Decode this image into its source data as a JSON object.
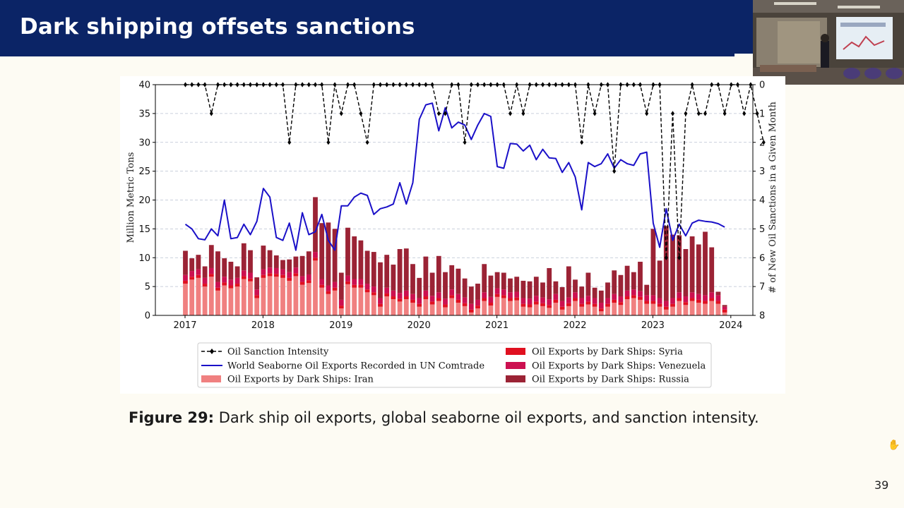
{
  "slide": {
    "title": "Dark shipping offsets sanctions",
    "caption_label": "Figure 29:",
    "caption_text": "Dark ship oil exports, global seaborne oil exports, and sanction intensity.",
    "page_number": "39"
  },
  "chart_data": {
    "type": "bar",
    "xlabel": "",
    "ylabel": "Million Metric Tons",
    "y2label": "# of New Oil Sanctions in a Given Month",
    "ylim": [
      0,
      40
    ],
    "y2lim": [
      0,
      8
    ],
    "y2_inverted": true,
    "y_ticks": [
      0,
      5,
      10,
      15,
      20,
      25,
      30,
      35,
      40
    ],
    "y2_ticks": [
      0,
      1,
      2,
      3,
      4,
      5,
      6,
      7,
      8
    ],
    "x_ticks": [
      "2017",
      "2018",
      "2019",
      "2020",
      "2021",
      "2022",
      "2023",
      "2024"
    ],
    "grid": "horizontal dashed",
    "legend_position": "bottom-center",
    "months_start": "2017-01",
    "bar_series": [
      {
        "name": "Oil Exports by Dark Ships: Iran",
        "color": "#f08080",
        "values": [
          5.5,
          6.2,
          6.5,
          5.0,
          6.7,
          4.3,
          5.2,
          4.7,
          5.0,
          6.3,
          5.9,
          3.0,
          6.5,
          6.8,
          6.7,
          6.5,
          6.0,
          6.8,
          5.3,
          5.6,
          9.5,
          4.8,
          3.7,
          4.3,
          1.2,
          5.4,
          4.8,
          4.8,
          4.0,
          3.5,
          1.5,
          3.3,
          2.8,
          2.4,
          2.8,
          2.2,
          1.5,
          2.8,
          1.9,
          2.5,
          1.4,
          3.0,
          2.2,
          1.6,
          0.5,
          1.2,
          2.5,
          1.7,
          3.2,
          3.0,
          2.5,
          2.6,
          1.5,
          1.4,
          1.9,
          1.6,
          1.3,
          2.2,
          1.0,
          1.6,
          2.5,
          1.5,
          1.9,
          1.5,
          0.7,
          1.5,
          2.2,
          1.8,
          2.8,
          3.0,
          2.7,
          2.0,
          2.0,
          1.5,
          1.0,
          1.5,
          2.5,
          1.8,
          2.5,
          2.2,
          2.0,
          2.5,
          2.0,
          0.5
        ]
      },
      {
        "name": "Oil Exports by Dark Ships: Syria",
        "color": "#e01020",
        "values": [
          0.5,
          0.5,
          0.5,
          0.5,
          0.5,
          0.5,
          0.5,
          0.5,
          0.5,
          0.5,
          0.5,
          0.5,
          0.5,
          0.5,
          0.5,
          0.5,
          0.5,
          0.5,
          0.5,
          0.5,
          0.5,
          0.5,
          0.5,
          0.5,
          0.5,
          0.5,
          0.5,
          0.5,
          0.5,
          0.5,
          0.5,
          0.5,
          0.5,
          0.5,
          0.5,
          0.5,
          0.5,
          0.5,
          0.5,
          0.5,
          0.5,
          0.5,
          0.5,
          0.5,
          0.5,
          0.5,
          0.5,
          0.5,
          0.5,
          0.5,
          0.5,
          0.5,
          0.5,
          0.5,
          0.5,
          0.5,
          0.5,
          0.5,
          0.5,
          0.5,
          0.5,
          0.5,
          0.5,
          0.5,
          0.5,
          0.5,
          0.5,
          0.5,
          0.5,
          0.5,
          0.5,
          0.5,
          0.5,
          0.5,
          0.5,
          0.5,
          0.5,
          0.5,
          0.5,
          0.5,
          0.5,
          0.5,
          0.5,
          0.5
        ]
      },
      {
        "name": "Oil Exports by Dark Ships: Venezuela",
        "color": "#cc1050",
        "values": [
          1.0,
          1.0,
          1.0,
          1.0,
          1.0,
          1.0,
          1.0,
          1.0,
          1.0,
          1.0,
          1.0,
          1.0,
          1.0,
          1.0,
          1.0,
          1.0,
          1.0,
          1.0,
          1.0,
          1.0,
          1.0,
          1.0,
          1.0,
          1.0,
          1.0,
          1.0,
          1.0,
          1.0,
          1.0,
          1.0,
          1.0,
          1.0,
          1.0,
          1.0,
          1.0,
          1.0,
          1.0,
          1.0,
          1.0,
          1.0,
          1.0,
          1.0,
          1.0,
          1.0,
          1.0,
          1.0,
          1.0,
          1.0,
          1.0,
          1.0,
          1.0,
          1.0,
          1.0,
          1.0,
          1.0,
          1.0,
          1.0,
          1.0,
          1.0,
          1.0,
          1.0,
          1.0,
          1.0,
          1.0,
          1.0,
          1.0,
          1.0,
          1.0,
          1.0,
          1.0,
          1.0,
          1.0,
          1.0,
          1.0,
          1.0,
          1.0,
          1.0,
          1.0,
          1.0,
          1.0,
          1.0,
          1.0,
          1.0,
          0.5
        ]
      },
      {
        "name": "Oil Exports by Dark Ships: Russia",
        "color": "#9b2335",
        "values": [
          4.2,
          2.2,
          2.5,
          2.0,
          4.0,
          5.3,
          3.2,
          3.1,
          2.0,
          4.7,
          3.9,
          2.1,
          4.1,
          3.0,
          2.2,
          1.6,
          2.2,
          1.9,
          3.5,
          4.0,
          9.5,
          9.7,
          10.9,
          9.2,
          4.7,
          8.3,
          7.4,
          6.7,
          5.7,
          6.0,
          6.2,
          5.7,
          4.5,
          7.6,
          7.3,
          5.2,
          3.5,
          5.9,
          4.0,
          6.3,
          4.6,
          4.2,
          4.4,
          3.3,
          3.0,
          2.8,
          4.9,
          3.7,
          2.8,
          2.9,
          2.4,
          2.6,
          3.0,
          3.0,
          3.3,
          2.6,
          5.4,
          2.2,
          2.4,
          5.4,
          2.2,
          2.0,
          4.0,
          1.8,
          2.1,
          2.7,
          4.1,
          3.7,
          4.3,
          3.0,
          5.1,
          1.8,
          11.5,
          6.5,
          13.0,
          11.0,
          9.9,
          8.2,
          9.7,
          8.6,
          11.0,
          7.8,
          0.6,
          0.3
        ]
      }
    ],
    "line_series": [
      {
        "name": "World Seaborne Oil Exports Recorded in UN Comtrade",
        "color": "#1a10c8",
        "axis": "left",
        "values": [
          15.8,
          15.0,
          13.3,
          13.1,
          15.0,
          13.8,
          20.0,
          13.3,
          13.5,
          15.8,
          14.0,
          16.3,
          22.0,
          20.5,
          13.5,
          13.0,
          16.0,
          11.3,
          17.8,
          14.0,
          14.5,
          17.5,
          13.0,
          11.3,
          19.0,
          19.0,
          20.5,
          21.2,
          20.8,
          17.5,
          18.5,
          18.8,
          19.3,
          23.0,
          19.3,
          23.0,
          34.0,
          36.5,
          36.8,
          32.0,
          36.0,
          32.5,
          33.5,
          33.0,
          30.5,
          33.0,
          35.0,
          34.5,
          25.8,
          25.5,
          29.8,
          29.7,
          28.5,
          29.5,
          27.0,
          28.8,
          27.3,
          27.2,
          24.8,
          26.5,
          24.0,
          18.3,
          26.5,
          25.8,
          26.3,
          28.0,
          25.5,
          27.0,
          26.3,
          26.0,
          28.0,
          28.3,
          16.0,
          11.8,
          18.5,
          13.0,
          15.8,
          13.8,
          16.0,
          16.5,
          16.3,
          16.2,
          15.9,
          15.3
        ]
      },
      {
        "name": "Oil Sanction Intensity",
        "color": "#000000",
        "axis": "right",
        "style": "dashed-diamond",
        "values": [
          0,
          0,
          0,
          0,
          1,
          0,
          0,
          0,
          0,
          0,
          0,
          0,
          0,
          0,
          0,
          0,
          2,
          0,
          0,
          0,
          0,
          0,
          2,
          0,
          1,
          0,
          0,
          1,
          2,
          0,
          0,
          0,
          0,
          0,
          0,
          0,
          0,
          0,
          0,
          1,
          1,
          0,
          0,
          2,
          0,
          0,
          0,
          0,
          0,
          0,
          1,
          0,
          1,
          0,
          0,
          0,
          0,
          0,
          0,
          0,
          0,
          2,
          0,
          1,
          0,
          0,
          3,
          0,
          0,
          0,
          0,
          1,
          0,
          0,
          6,
          1,
          6,
          1,
          0,
          1,
          1,
          0,
          0,
          1,
          0,
          0,
          1,
          0,
          1,
          2
        ]
      }
    ]
  }
}
